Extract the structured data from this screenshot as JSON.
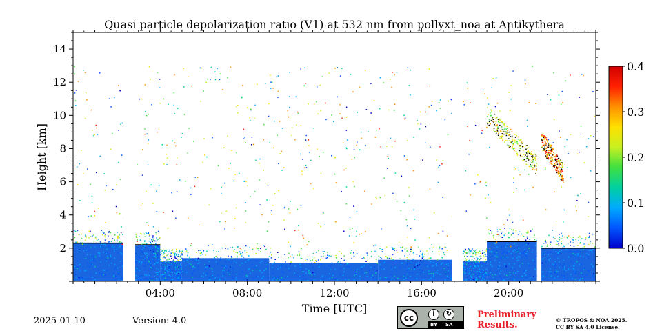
{
  "chart_data": {
    "type": "heatmap",
    "title": "Quasi particle depolarization ratio (V1) at 532 nm from pollyxt_noa at Antikythera",
    "xlabel": "Time [UTC]",
    "ylabel": "Height [km]",
    "xlim_hours": [
      0,
      24
    ],
    "ylim_km": [
      0,
      15
    ],
    "x_ticks": [
      {
        "hour": 4,
        "label": "04:00"
      },
      {
        "hour": 8,
        "label": "08:00"
      },
      {
        "hour": 12,
        "label": "12:00"
      },
      {
        "hour": 16,
        "label": "16:00"
      },
      {
        "hour": 20,
        "label": "20:00"
      }
    ],
    "y_ticks": [
      {
        "value": 2,
        "label": "2"
      },
      {
        "value": 4,
        "label": "4"
      },
      {
        "value": 6,
        "label": "6"
      },
      {
        "value": 8,
        "label": "8"
      },
      {
        "value": 10,
        "label": "10"
      },
      {
        "value": 12,
        "label": "12"
      },
      {
        "value": 14,
        "label": "14"
      }
    ],
    "colorbar": {
      "min": 0.0,
      "max": 0.4,
      "ticks": [
        {
          "value": 0.0,
          "label": "0.0"
        },
        {
          "value": 0.1,
          "label": "0.1"
        },
        {
          "value": 0.2,
          "label": "0.2"
        },
        {
          "value": 0.3,
          "label": "0.3"
        },
        {
          "value": 0.4,
          "label": "0.4"
        }
      ],
      "colormap": [
        "#0000cc",
        "#0055ff",
        "#00aaff",
        "#00d0a0",
        "#40e040",
        "#c8f020",
        "#ffe000",
        "#ff9000",
        "#ff2000",
        "#d00000"
      ]
    },
    "data_gaps_hours": [
      [
        2.3,
        2.85
      ],
      [
        17.4,
        17.9
      ],
      [
        21.3,
        21.5
      ]
    ],
    "boundary_layer_segments": [
      {
        "start": 0.0,
        "end": 2.3,
        "top_km": 2.3
      },
      {
        "start": 2.85,
        "end": 4.0,
        "top_km": 2.2
      },
      {
        "start": 4.0,
        "end": 5.0,
        "top_km": 1.2
      },
      {
        "start": 5.0,
        "end": 9.0,
        "top_km": 1.4
      },
      {
        "start": 9.0,
        "end": 14.0,
        "top_km": 1.1
      },
      {
        "start": 14.0,
        "end": 17.4,
        "top_km": 1.3
      },
      {
        "start": 17.9,
        "end": 19.0,
        "top_km": 1.2
      },
      {
        "start": 19.0,
        "end": 21.3,
        "top_km": 2.4
      },
      {
        "start": 21.5,
        "end": 24.0,
        "top_km": 2.0
      }
    ],
    "aerosol_plumes": [
      {
        "start": 19.0,
        "end": 21.3,
        "bottom_km": 7.0,
        "top_km": 10.0,
        "value": 0.25
      },
      {
        "start": 21.5,
        "end": 22.5,
        "bottom_km": 6.5,
        "top_km": 8.5,
        "value": 0.3
      }
    ]
  },
  "footer": {
    "date": "2025-01-10",
    "version": "Version: 4.0",
    "license_badge": {
      "by": "BY",
      "sa": "SA",
      "cc": "cc"
    },
    "preliminary_line1": "Preliminary",
    "preliminary_line2": "Results.",
    "copyright_line1": "© TROPOS & NOA 2025.",
    "copyright_line2": "CC BY SA 4.0 License."
  }
}
